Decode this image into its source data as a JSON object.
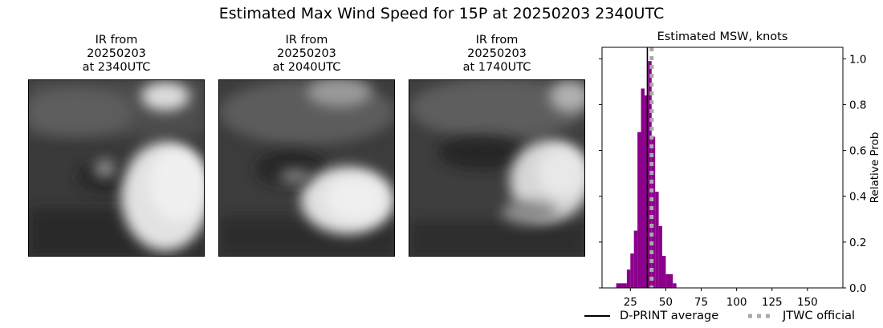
{
  "suptitle": "Estimated Max Wind Speed for 15P at 20250203 2340UTC",
  "panels": [
    {
      "title_line1": "IR from",
      "title_line2": "20250203",
      "title_line3": "at 2340UTC"
    },
    {
      "title_line1": "IR from",
      "title_line2": "20250203",
      "title_line3": "at 2040UTC"
    },
    {
      "title_line1": "IR from",
      "title_line2": "20250203",
      "title_line3": "at 1740UTC"
    }
  ],
  "chart_data": {
    "type": "bar",
    "title": "Estimated MSW, knots",
    "xlabel": "",
    "ylabel": "Relative Prob",
    "xlim": [
      5,
      175
    ],
    "ylim": [
      0,
      1.05
    ],
    "xticks": [
      25,
      50,
      75,
      100,
      125,
      150
    ],
    "yticks": [
      0.0,
      0.2,
      0.4,
      0.6,
      0.8,
      1.0
    ],
    "ytick_labels": [
      "0.0",
      "0.2",
      "0.4",
      "0.6",
      "0.8",
      "1.0"
    ],
    "bar_color": "#8b008b",
    "bins": [
      {
        "x0": 15,
        "x1": 22.5,
        "value": 0.02
      },
      {
        "x0": 22.5,
        "x1": 25,
        "value": 0.08
      },
      {
        "x0": 25,
        "x1": 27.5,
        "value": 0.15
      },
      {
        "x0": 27.5,
        "x1": 30,
        "value": 0.25
      },
      {
        "x0": 30,
        "x1": 32.5,
        "value": 0.68
      },
      {
        "x0": 32.5,
        "x1": 35,
        "value": 0.87
      },
      {
        "x0": 35,
        "x1": 37.5,
        "value": 0.84
      },
      {
        "x0": 37.5,
        "x1": 40,
        "value": 0.99
      },
      {
        "x0": 40,
        "x1": 42.5,
        "value": 0.66
      },
      {
        "x0": 42.5,
        "x1": 45,
        "value": 0.42
      },
      {
        "x0": 45,
        "x1": 47.5,
        "value": 0.27
      },
      {
        "x0": 47.5,
        "x1": 50,
        "value": 0.14
      },
      {
        "x0": 50,
        "x1": 55,
        "value": 0.06
      },
      {
        "x0": 55,
        "x1": 57.5,
        "value": 0.02
      }
    ],
    "lines": [
      {
        "name": "D-PRINT average",
        "x": 37,
        "color": "#000000",
        "style": "solid"
      },
      {
        "name": "JTWC official",
        "x": 40,
        "color": "#a9a9a9",
        "style": "dotted"
      }
    ],
    "legend_position": "bottom"
  }
}
